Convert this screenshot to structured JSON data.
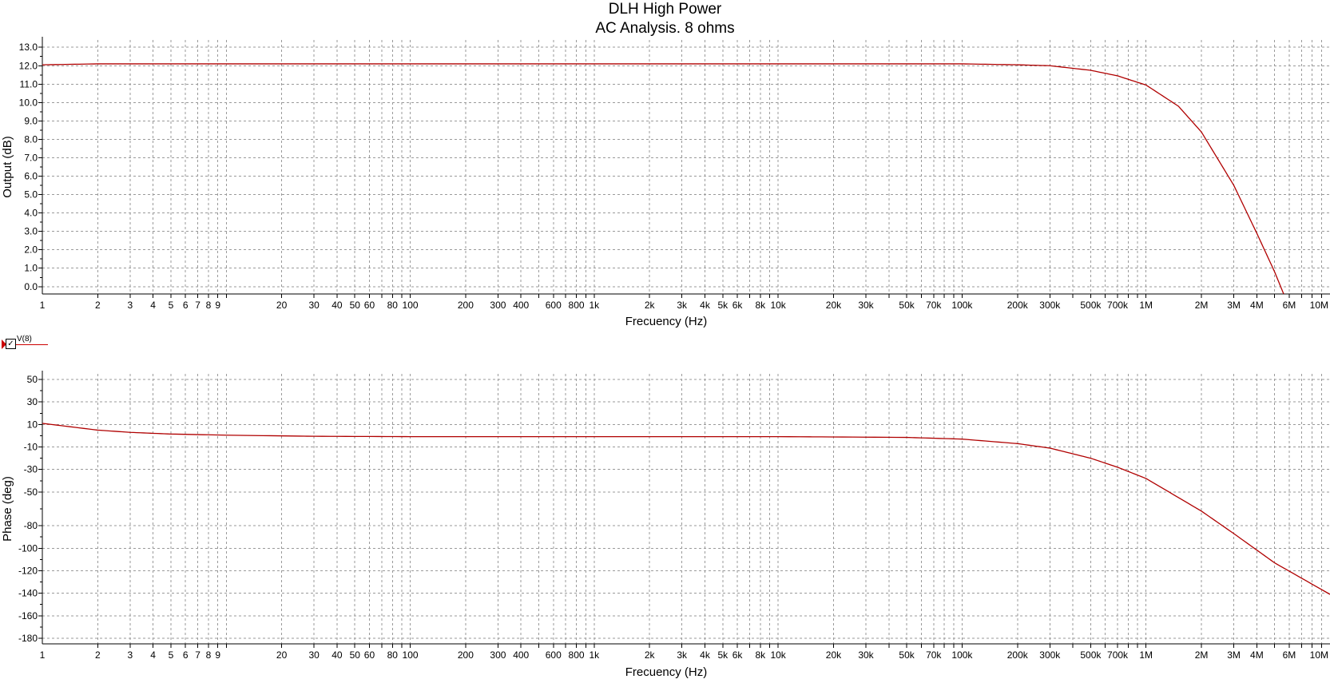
{
  "title": "DLH High Power",
  "subtitle": "AC Analysis. 8 ohms",
  "legend": {
    "label": "V(8)",
    "checked": true
  },
  "colors": {
    "trace": "#b00000",
    "grid": "#9a9a9a",
    "axis": "#000000"
  },
  "chart_data": [
    {
      "type": "line",
      "xlabel": "Frecuency (Hz)",
      "ylabel": "Output (dB)",
      "xscale": "log",
      "xlim": [
        1,
        10000000
      ],
      "ylim": [
        -0.4,
        13.4
      ],
      "x_tick_labels": [
        "1",
        "2",
        "3",
        "4",
        "5",
        "6",
        "7",
        "8",
        "9",
        "20",
        "30",
        "40",
        "50",
        "60",
        "80",
        "100",
        "200",
        "300",
        "400",
        "600",
        "800",
        "1k",
        "2k",
        "3k",
        "4k",
        "5k",
        "6k",
        "8k",
        "10k",
        "20k",
        "30k",
        "50k",
        "70k",
        "100k",
        "200k",
        "300k",
        "500k",
        "700k",
        "1M",
        "2M",
        "3M",
        "4M",
        "6M",
        "10M"
      ],
      "y_tick_labels": [
        "0.0",
        "1.0",
        "2.0",
        "3.0",
        "4.0",
        "5.0",
        "6.0",
        "7.0",
        "8.0",
        "9.0",
        "10.0",
        "11.0",
        "12.0",
        "13.0"
      ],
      "series": [
        {
          "x": [
            1,
            2,
            10,
            100,
            1000,
            10000,
            100000,
            200000,
            300000,
            500000,
            700000,
            1000000,
            1500000,
            2000000,
            3000000,
            4000000,
            5000000,
            5600000
          ],
          "y": [
            12.05,
            12.1,
            12.1,
            12.1,
            12.1,
            12.1,
            12.1,
            12.05,
            12.0,
            11.75,
            11.45,
            10.95,
            9.8,
            8.4,
            5.5,
            2.9,
            0.8,
            -0.4
          ]
        }
      ],
      "grid": true
    },
    {
      "type": "line",
      "xlabel": "Frecuency (Hz)",
      "ylabel": "Phase (deg)",
      "xscale": "log",
      "xlim": [
        1,
        10000000
      ],
      "ylim": [
        -185,
        55
      ],
      "x_tick_labels": [
        "1",
        "2",
        "3",
        "4",
        "5",
        "6",
        "7",
        "8",
        "9",
        "20",
        "30",
        "40",
        "50",
        "60",
        "80",
        "100",
        "200",
        "300",
        "400",
        "600",
        "800",
        "1k",
        "2k",
        "3k",
        "4k",
        "5k",
        "6k",
        "8k",
        "10k",
        "20k",
        "30k",
        "50k",
        "70k",
        "100k",
        "200k",
        "300k",
        "500k",
        "700k",
        "1M",
        "2M",
        "3M",
        "4M",
        "6M",
        "10M"
      ],
      "y_tick_labels": [
        "50",
        "30",
        "10",
        "-10",
        "-30",
        "-50",
        "-80",
        "-100",
        "-120",
        "-140",
        "-160",
        "-180"
      ],
      "series": [
        {
          "x": [
            1,
            2,
            3,
            5,
            10,
            30,
            100,
            1000,
            10000,
            50000,
            100000,
            200000,
            300000,
            500000,
            700000,
            1000000,
            2000000,
            3000000,
            5000000,
            10000000
          ],
          "y": [
            11,
            5,
            3,
            1.5,
            0.5,
            -0.5,
            -0.8,
            -0.8,
            -0.8,
            -1.5,
            -3,
            -7,
            -11,
            -20,
            -28,
            -38,
            -67,
            -87,
            -113,
            -141
          ]
        }
      ],
      "grid": true
    }
  ]
}
